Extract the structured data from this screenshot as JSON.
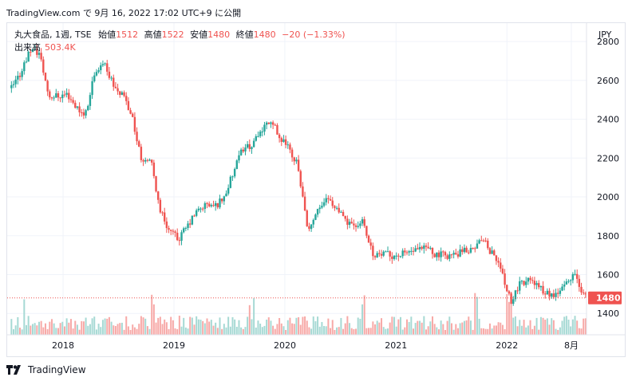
{
  "header": {
    "text": "TradingView.com で 9月 16, 2022 17:02 UTC+9 に公開"
  },
  "legend": {
    "symbol": "丸大食品, 1週, TSE",
    "open_label": "始値",
    "open": "1512",
    "high_label": "高値",
    "high": "1522",
    "low_label": "安値",
    "low": "1480",
    "close_label": "終値",
    "close": "1480",
    "change": "−20 (−1.33%)",
    "volume_label": "出来高",
    "volume": "503.4K"
  },
  "footer": {
    "brand": "TradingView"
  },
  "chart_data": {
    "type": "candlestick",
    "currency": "JPY",
    "y_ticks": [
      "2800",
      "2600",
      "2400",
      "2200",
      "2000",
      "1800",
      "1600",
      "1400"
    ],
    "x_ticks": [
      "2018",
      "2019",
      "2020",
      "2021",
      "2022",
      "8月"
    ],
    "ylim": [
      1290,
      2895
    ],
    "last_price": "1480",
    "colors": {
      "up": "#26a69a",
      "down": "#ef5350",
      "vol_up": "#a6d9d4",
      "vol_down": "#f7a9a7"
    },
    "price_path": [
      [
        "2017-07",
        2560
      ],
      [
        "2017-08",
        2640
      ],
      [
        "2017-09",
        2760
      ],
      [
        "2017-10",
        2740
      ],
      [
        "2017-11",
        2520
      ],
      [
        "2017-12",
        2520
      ],
      [
        "2018-01",
        2530
      ],
      [
        "2018-02",
        2460
      ],
      [
        "2018-03",
        2420
      ],
      [
        "2018-04",
        2640
      ],
      [
        "2018-05",
        2700
      ],
      [
        "2018-06",
        2580
      ],
      [
        "2018-07",
        2520
      ],
      [
        "2018-08",
        2420
      ],
      [
        "2018-09",
        2200
      ],
      [
        "2018-10",
        2200
      ],
      [
        "2018-11",
        1940
      ],
      [
        "2018-12",
        1830
      ],
      [
        "2019-01",
        1780
      ],
      [
        "2019-02",
        1850
      ],
      [
        "2019-03",
        1920
      ],
      [
        "2019-04",
        1960
      ],
      [
        "2019-05",
        1950
      ],
      [
        "2019-06",
        2000
      ],
      [
        "2019-07",
        2120
      ],
      [
        "2019-08",
        2250
      ],
      [
        "2019-09",
        2270
      ],
      [
        "2019-10",
        2340
      ],
      [
        "2019-11",
        2400
      ],
      [
        "2019-12",
        2300
      ],
      [
        "2020-01",
        2250
      ],
      [
        "2020-02",
        2150
      ],
      [
        "2020-03",
        1820
      ],
      [
        "2020-04",
        1930
      ],
      [
        "2020-05",
        2000
      ],
      [
        "2020-06",
        1950
      ],
      [
        "2020-07",
        1880
      ],
      [
        "2020-08",
        1840
      ],
      [
        "2020-09",
        1880
      ],
      [
        "2020-10",
        1710
      ],
      [
        "2020-11",
        1700
      ],
      [
        "2020-12",
        1700
      ],
      [
        "2021-01",
        1700
      ],
      [
        "2021-02",
        1720
      ],
      [
        "2021-03",
        1720
      ],
      [
        "2021-04",
        1740
      ],
      [
        "2021-05",
        1700
      ],
      [
        "2021-06",
        1700
      ],
      [
        "2021-07",
        1700
      ],
      [
        "2021-08",
        1720
      ],
      [
        "2021-09",
        1740
      ],
      [
        "2021-10",
        1780
      ],
      [
        "2021-11",
        1700
      ],
      [
        "2021-12",
        1620
      ],
      [
        "2022-01",
        1450
      ],
      [
        "2022-02",
        1560
      ],
      [
        "2022-03",
        1570
      ],
      [
        "2022-04",
        1540
      ],
      [
        "2022-05",
        1500
      ],
      [
        "2022-06",
        1490
      ],
      [
        "2022-07",
        1560
      ],
      [
        "2022-08",
        1600
      ],
      [
        "2022-09",
        1480
      ]
    ],
    "big_volume_weeks": [
      "2017-08",
      "2018-03",
      "2018-10",
      "2019-09",
      "2020-03",
      "2020-09",
      "2021-09",
      "2022-01"
    ]
  }
}
